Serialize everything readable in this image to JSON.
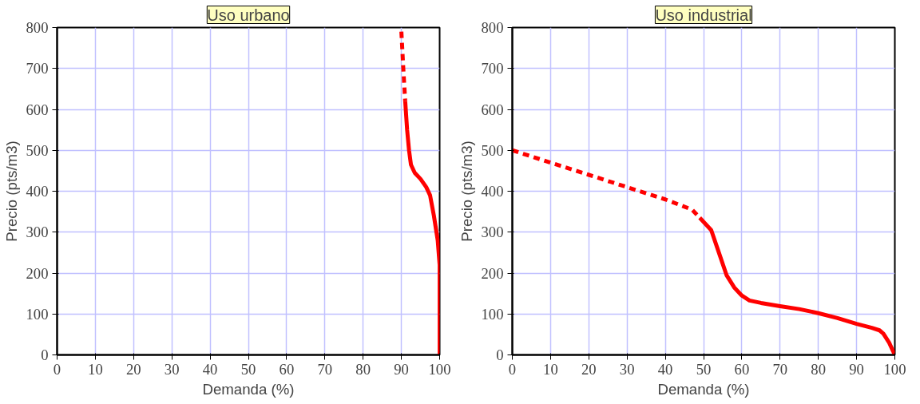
{
  "chart_data": [
    {
      "type": "line",
      "title": "Uso urbano",
      "xlabel": "Demanda (%)",
      "ylabel": "Precio (pts/m3)",
      "xlim": [
        0,
        100
      ],
      "ylim": [
        0,
        800
      ],
      "xticks": [
        0,
        10,
        20,
        30,
        40,
        50,
        60,
        70,
        80,
        90,
        100
      ],
      "yticks": [
        0,
        100,
        200,
        300,
        400,
        500,
        600,
        700,
        800
      ],
      "grid": true,
      "marker": "none",
      "series": [
        {
          "color": "#ff0000",
          "line_style": "dashed",
          "x": [
            90,
            90.5,
            91
          ],
          "values": [
            790,
            700,
            620
          ]
        },
        {
          "color": "#ff0000",
          "line_style": "solid",
          "x": [
            91,
            91.5,
            92,
            92.5,
            93.5,
            95,
            96.5,
            97.5,
            98.5,
            99.5,
            100,
            100
          ],
          "values": [
            620,
            550,
            500,
            465,
            445,
            430,
            410,
            390,
            340,
            280,
            220,
            0
          ]
        }
      ]
    },
    {
      "type": "line",
      "title": "Uso industrial",
      "xlabel": "Demanda (%)",
      "ylabel": "Precio (pts/m3)",
      "xlim": [
        0,
        100
      ],
      "ylim": [
        0,
        800
      ],
      "xticks": [
        0,
        10,
        20,
        30,
        40,
        50,
        60,
        70,
        80,
        90,
        100
      ],
      "yticks": [
        0,
        100,
        200,
        300,
        400,
        500,
        600,
        700,
        800
      ],
      "grid": true,
      "marker": "none",
      "series": [
        {
          "color": "#ff0000",
          "line_style": "dashed",
          "x": [
            0,
            10,
            20,
            30,
            40,
            47,
            49
          ],
          "values": [
            500,
            470,
            440,
            410,
            380,
            355,
            335
          ]
        },
        {
          "color": "#ff0000",
          "line_style": "solid",
          "x": [
            49,
            52,
            54,
            56,
            58,
            60,
            62,
            65,
            70,
            75,
            80,
            85,
            90,
            94,
            96,
            97,
            98.5,
            100
          ],
          "values": [
            335,
            305,
            250,
            195,
            165,
            145,
            133,
            127,
            119,
            112,
            102,
            90,
            76,
            66,
            60,
            52,
            30,
            0
          ]
        }
      ]
    }
  ]
}
